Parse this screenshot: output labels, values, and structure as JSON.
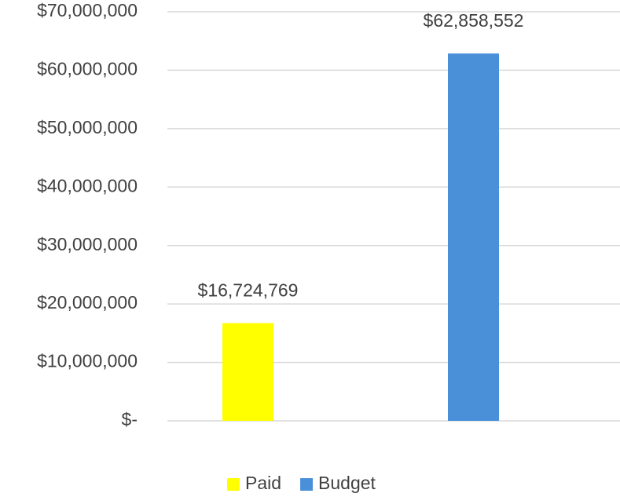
{
  "chart_data": {
    "type": "bar",
    "categories": [
      "Paid",
      "Budget"
    ],
    "values": [
      16724769,
      62858552
    ],
    "value_labels": [
      "$16,724,769",
      "$62,858,552"
    ],
    "colors": [
      "#ffff00",
      "#4a90d9"
    ],
    "ylim": [
      0,
      70000000
    ],
    "yticks": [
      {
        "value": 0,
        "label": "$-"
      },
      {
        "value": 10000000,
        "label": "$10,000,000"
      },
      {
        "value": 20000000,
        "label": "$20,000,000"
      },
      {
        "value": 30000000,
        "label": "$30,000,000"
      },
      {
        "value": 40000000,
        "label": "$40,000,000"
      },
      {
        "value": 50000000,
        "label": "$50,000,000"
      },
      {
        "value": 60000000,
        "label": "$60,000,000"
      },
      {
        "value": 70000000,
        "label": "$70,000,000"
      }
    ],
    "grid": true,
    "legend": "bottom"
  }
}
